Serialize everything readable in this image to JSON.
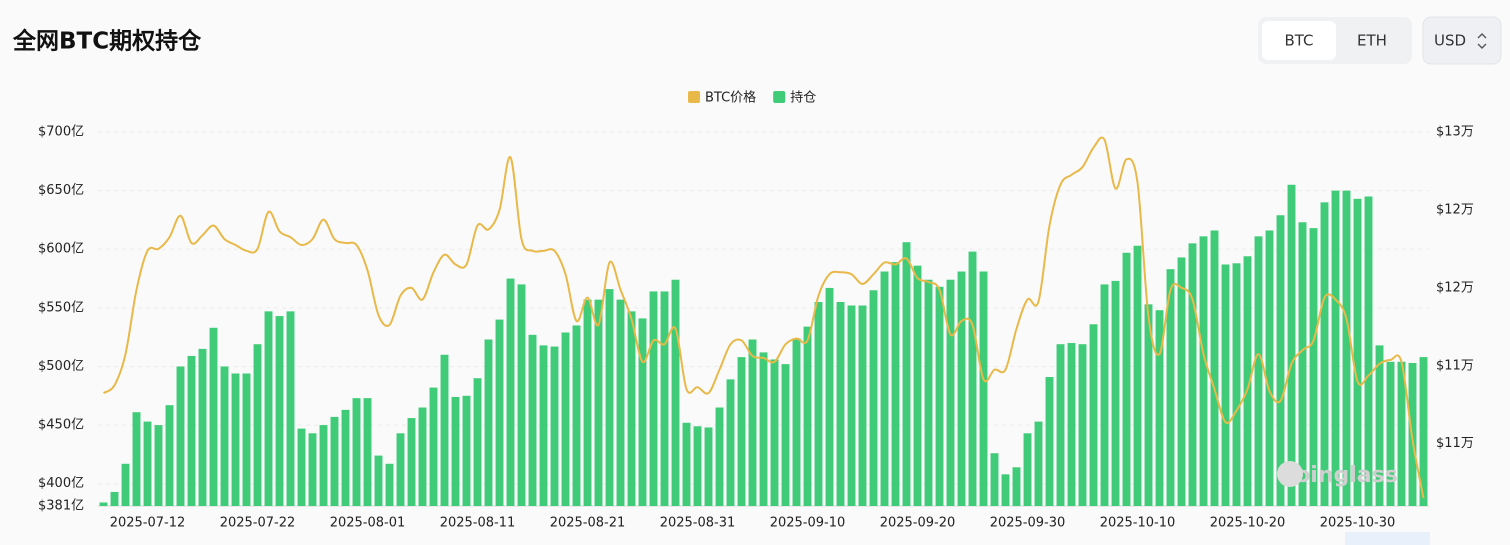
{
  "header": {
    "title": "全网BTC期权持仓",
    "tabs": [
      "BTC",
      "ETH"
    ],
    "currency": "USD"
  },
  "watermark": "coinglass",
  "chart_data": {
    "type": "bar",
    "legend": "top",
    "grid": true,
    "categories": [
      null,
      null,
      null,
      null,
      "2025-07-12",
      null,
      null,
      null,
      null,
      null,
      null,
      null,
      null,
      null,
      "2025-07-22",
      null,
      null,
      null,
      null,
      null,
      null,
      null,
      null,
      null,
      "2025-08-01",
      null,
      null,
      null,
      null,
      null,
      null,
      null,
      null,
      null,
      "2025-08-11",
      null,
      null,
      null,
      null,
      null,
      null,
      null,
      null,
      null,
      "2025-08-21",
      null,
      null,
      null,
      null,
      null,
      null,
      null,
      null,
      null,
      "2025-08-31",
      null,
      null,
      null,
      null,
      null,
      null,
      null,
      null,
      null,
      "2025-09-10",
      null,
      null,
      null,
      null,
      null,
      null,
      null,
      null,
      null,
      "2025-09-20",
      null,
      null,
      null,
      null,
      null,
      null,
      null,
      null,
      null,
      "2025-09-30",
      null,
      null,
      null,
      null,
      null,
      null,
      null,
      null,
      null,
      "2025-10-10",
      null,
      null,
      null,
      null,
      null,
      null,
      null,
      null,
      null,
      "2025-10-20",
      null,
      null,
      null,
      null,
      null,
      null,
      null,
      null,
      null,
      "2025-10-30",
      null,
      null,
      null,
      null,
      null,
      null
    ],
    "series": [
      {
        "name": "BTC价格",
        "type": "line",
        "axis": "y2",
        "color": "#e8b949",
        "values": [
          112600,
          113000,
          114600,
          117900,
          119900,
          120000,
          120600,
          121700,
          120300,
          120700,
          121200,
          120500,
          120200,
          119900,
          120000,
          121900,
          120900,
          120600,
          120200,
          120500,
          121500,
          120500,
          120300,
          120200,
          118900,
          116600,
          116100,
          117600,
          118000,
          117400,
          118800,
          119700,
          119200,
          119200,
          121200,
          121000,
          122000,
          124700,
          120500,
          119900,
          119900,
          119900,
          118700,
          116300,
          117500,
          116100,
          119300,
          117900,
          116400,
          114200,
          115300,
          115100,
          115900,
          112800,
          112900,
          112600,
          113800,
          115100,
          115300,
          114500,
          114400,
          114200,
          115100,
          115400,
          115300,
          117600,
          118700,
          118800,
          118700,
          118200,
          118700,
          119300,
          119200,
          119500,
          118500,
          118300,
          117900,
          115600,
          116300,
          116100,
          113300,
          113800,
          113800,
          115900,
          117400,
          117300,
          121200,
          123300,
          123800,
          124200,
          125200,
          125600,
          123100,
          124600,
          123400,
          116500,
          114600,
          117900,
          118000,
          117400,
          114600,
          112800,
          111100,
          111700,
          112800,
          114600,
          112700,
          112200,
          114100,
          114800,
          115300,
          117500,
          117400,
          116400,
          113200,
          113500,
          114100,
          114300,
          114200,
          110200,
          107200
        ]
      },
      {
        "name": "持仓",
        "type": "bar",
        "axis": "y",
        "color": "#3fcb77",
        "values": [
          384,
          393,
          417,
          461,
          453,
          450,
          467,
          500,
          509,
          515,
          533,
          500,
          494,
          494,
          519,
          547,
          543,
          547,
          447,
          443,
          450,
          457,
          463,
          473,
          473,
          424,
          417,
          443,
          456,
          465,
          482,
          510,
          474,
          475,
          490,
          523,
          540,
          575,
          570,
          527,
          518,
          517,
          529,
          535,
          557,
          557,
          566,
          557,
          547,
          541,
          564,
          564,
          574,
          452,
          449,
          448,
          465,
          489,
          508,
          523,
          512,
          506,
          502,
          524,
          534,
          555,
          567,
          555,
          552,
          552,
          565,
          581,
          589,
          606,
          586,
          574,
          568,
          574,
          581,
          598,
          581,
          426,
          408,
          414,
          443,
          453,
          491,
          519,
          520,
          519,
          536,
          570,
          573,
          597,
          603,
          553,
          548,
          583,
          593,
          605,
          611,
          616,
          587,
          588,
          594,
          611,
          616,
          629,
          655,
          623,
          618,
          640,
          650,
          650,
          643,
          645,
          518,
          504,
          504,
          503,
          508
        ]
      }
    ],
    "ylim": [
      381,
      700
    ],
    "yticks": [
      {
        "value": 381,
        "label": "$381亿"
      },
      {
        "value": 400,
        "label": "$400亿"
      },
      {
        "value": 450,
        "label": "$450亿"
      },
      {
        "value": 500,
        "label": "$500亿"
      },
      {
        "value": 550,
        "label": "$550亿"
      },
      {
        "value": 600,
        "label": "$600亿"
      },
      {
        "value": 650,
        "label": "$650亿"
      },
      {
        "value": 700,
        "label": "$700亿"
      }
    ],
    "y2lim": [
      106800,
      126000
    ],
    "y2ticks": [
      {
        "value": 110000,
        "label": "$11万"
      },
      {
        "value": 114000,
        "label": "$11万"
      },
      {
        "value": 118000,
        "label": "$12万"
      },
      {
        "value": 122000,
        "label": "$12万"
      },
      {
        "value": 126000,
        "label": "$13万"
      }
    ]
  }
}
